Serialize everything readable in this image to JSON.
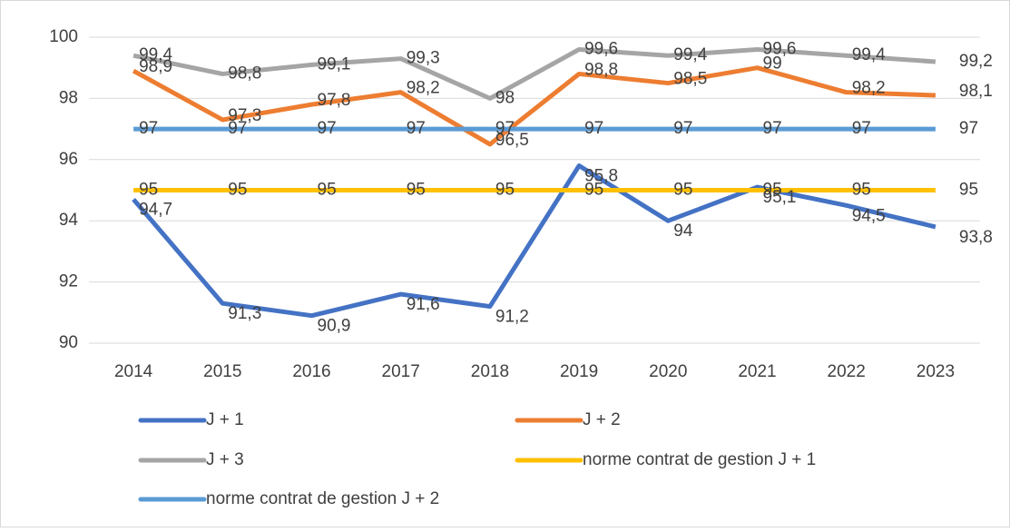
{
  "chart_data": {
    "type": "line",
    "categories": [
      "2014",
      "2015",
      "2016",
      "2017",
      "2018",
      "2019",
      "2020",
      "2021",
      "2022",
      "2023"
    ],
    "series": [
      {
        "name": "J + 1",
        "color": "#4472c4",
        "values": [
          94.7,
          91.3,
          90.9,
          91.6,
          91.2,
          95.8,
          94,
          95.1,
          94.5,
          93.8
        ],
        "value_labels": [
          "94,7",
          "91,3",
          "90,9",
          "91,6",
          "91,2",
          "95,8",
          "94",
          "95,1",
          "94,5",
          "93,8"
        ]
      },
      {
        "name": "J + 2",
        "color": "#ed7d31",
        "values": [
          98.9,
          97.3,
          97.8,
          98.2,
          96.5,
          98.8,
          98.5,
          99,
          98.2,
          98.1
        ],
        "value_labels": [
          "98,9",
          "97,3",
          "97,8",
          "98,2",
          "96,5",
          "98,8",
          "98,5",
          "99",
          "98,2",
          "98,1"
        ]
      },
      {
        "name": "J + 3",
        "color": "#a5a5a5",
        "values": [
          99.4,
          98.8,
          99.1,
          99.3,
          98,
          99.6,
          99.4,
          99.6,
          99.4,
          99.2
        ],
        "value_labels": [
          "99,4",
          "98,8",
          "99,1",
          "99,3",
          "98",
          "99,6",
          "99,4",
          "99,6",
          "99,4",
          "99,2"
        ]
      },
      {
        "name": "norme contrat de gestion J + 1",
        "color": "#ffc000",
        "values": [
          95,
          95,
          95,
          95,
          95,
          95,
          95,
          95,
          95,
          95
        ]
      },
      {
        "name": "norme contrat de gestion J + 2",
        "color": "#5b9bd5",
        "values": [
          97,
          97,
          97,
          97,
          97,
          97,
          97,
          97,
          97,
          97
        ]
      }
    ],
    "ylim": [
      90,
      100
    ],
    "yticks": [
      90,
      92,
      94,
      96,
      98,
      100
    ],
    "grid": true
  }
}
